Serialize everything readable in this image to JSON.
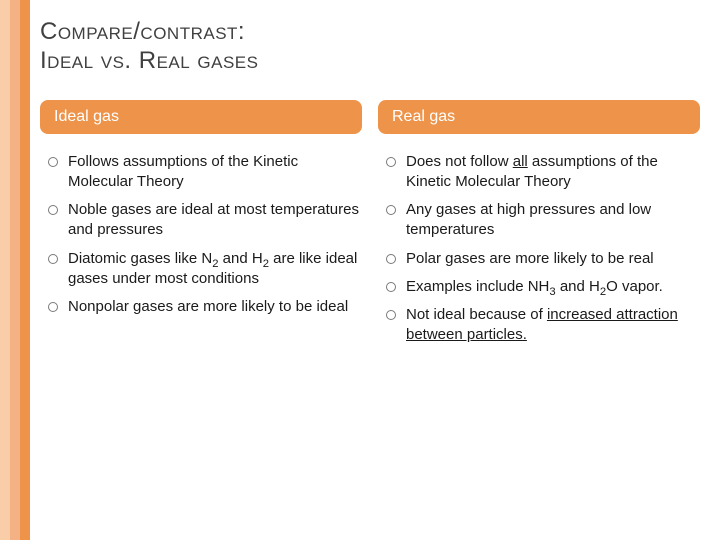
{
  "bars": [
    {
      "color": "#f9cda8",
      "width": 10
    },
    {
      "color": "#f4b183",
      "width": 10
    },
    {
      "color": "#ed944a",
      "width": 10
    }
  ],
  "title_line1": "Compare/contrast:",
  "title_line2": "Ideal vs. Real gases",
  "left": {
    "heading": "Ideal gas",
    "items": [
      {
        "html": "Follows assumptions of the Kinetic Molecular Theory"
      },
      {
        "html": "Noble gases are ideal at most temperatures and pressures"
      },
      {
        "html": "Diatomic gases like N<sub>2</sub> and H<sub>2</sub> are like ideal gases under most conditions"
      },
      {
        "html": "Nonpolar gases are more likely to be ideal"
      }
    ]
  },
  "right": {
    "heading": "Real gas",
    "items": [
      {
        "html": "Does not follow <span class=\"u\">all</span> assumptions of the Kinetic Molecular Theory"
      },
      {
        "html": "Any gases at high pressures and low temperatures"
      },
      {
        "html": "Polar gases are more likely to be real"
      },
      {
        "html": "Examples include NH<sub>3</sub> and H<sub>2</sub>O vapor."
      },
      {
        "html": "Not ideal because of <span class=\"u\">increased attraction between particles.</span>"
      }
    ]
  },
  "colors": {
    "pill_bg": "#ed944a",
    "pill_text": "#ffffff",
    "title_text": "#404040",
    "body_text": "#1a1a1a",
    "background": "#ffffff"
  },
  "typography": {
    "title_fontsize": 24,
    "pill_fontsize": 16,
    "body_fontsize": 15
  }
}
